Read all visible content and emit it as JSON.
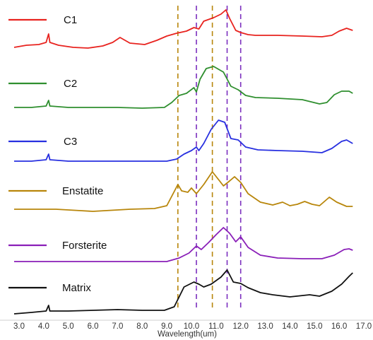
{
  "chart_data": {
    "type": "line",
    "title": "",
    "xlabel": "Wavelength(um)",
    "ylabel": "",
    "xlim": [
      2.6,
      17.0
    ],
    "grid": false,
    "legend": "inline labels at the left of each stacked spectrum",
    "x_ticks": [
      "3.0",
      "4.0",
      "5.0",
      "6.0",
      "7.0",
      "8.0",
      "9.0",
      "10.0",
      "11.0",
      "12.0",
      "13.0",
      "14.0",
      "15.0",
      "16.0",
      "17.0"
    ],
    "reference_lines": [
      {
        "x": 9.45,
        "color": "#b8860b",
        "style": "dashed"
      },
      {
        "x": 10.2,
        "color": "#7b2fbe",
        "style": "dashed"
      },
      {
        "x": 10.85,
        "color": "#b8860b",
        "style": "dashed"
      },
      {
        "x": 11.45,
        "color": "#7b2fbe",
        "style": "dashed"
      },
      {
        "x": 12.0,
        "color": "#7b2fbe",
        "style": "dashed"
      }
    ],
    "series": [
      {
        "name": "C1",
        "color": "#e8231f",
        "baseline": 70,
        "points": [
          [
            2.8,
            0.03
          ],
          [
            3.3,
            0.06
          ],
          [
            3.8,
            0.07
          ],
          [
            4.1,
            0.1
          ],
          [
            4.2,
            0.22
          ],
          [
            4.25,
            0.1
          ],
          [
            4.6,
            0.06
          ],
          [
            5.2,
            0.03
          ],
          [
            5.8,
            0.02
          ],
          [
            6.4,
            0.05
          ],
          [
            6.8,
            0.1
          ],
          [
            7.1,
            0.17
          ],
          [
            7.5,
            0.09
          ],
          [
            8.1,
            0.07
          ],
          [
            8.6,
            0.13
          ],
          [
            9.0,
            0.19
          ],
          [
            9.4,
            0.23
          ],
          [
            9.8,
            0.26
          ],
          [
            10.1,
            0.31
          ],
          [
            10.3,
            0.29
          ],
          [
            10.5,
            0.4
          ],
          [
            10.9,
            0.45
          ],
          [
            11.2,
            0.5
          ],
          [
            11.4,
            0.56
          ],
          [
            11.55,
            0.44
          ],
          [
            11.8,
            0.27
          ],
          [
            12.0,
            0.24
          ],
          [
            12.3,
            0.21
          ],
          [
            12.6,
            0.2
          ],
          [
            13.5,
            0.2
          ],
          [
            14.5,
            0.19
          ],
          [
            15.3,
            0.18
          ],
          [
            15.7,
            0.2
          ],
          [
            16.0,
            0.26
          ],
          [
            16.3,
            0.3
          ],
          [
            16.55,
            0.27
          ]
        ]
      },
      {
        "name": "C2",
        "color": "#2f8f2f",
        "baseline": 152,
        "points": [
          [
            2.8,
            0.0
          ],
          [
            3.5,
            0.0
          ],
          [
            4.1,
            0.02
          ],
          [
            4.2,
            0.1
          ],
          [
            4.25,
            0.02
          ],
          [
            5.0,
            0.0
          ],
          [
            6.0,
            0.0
          ],
          [
            7.0,
            0.0
          ],
          [
            8.0,
            -0.01
          ],
          [
            8.9,
            0.0
          ],
          [
            9.2,
            0.07
          ],
          [
            9.5,
            0.17
          ],
          [
            9.8,
            0.2
          ],
          [
            10.1,
            0.28
          ],
          [
            10.2,
            0.22
          ],
          [
            10.35,
            0.4
          ],
          [
            10.6,
            0.55
          ],
          [
            10.9,
            0.58
          ],
          [
            11.3,
            0.5
          ],
          [
            11.6,
            0.3
          ],
          [
            11.9,
            0.25
          ],
          [
            12.2,
            0.17
          ],
          [
            12.6,
            0.14
          ],
          [
            13.5,
            0.13
          ],
          [
            14.5,
            0.11
          ],
          [
            15.2,
            0.05
          ],
          [
            15.5,
            0.07
          ],
          [
            15.8,
            0.18
          ],
          [
            16.1,
            0.23
          ],
          [
            16.4,
            0.23
          ],
          [
            16.55,
            0.2
          ]
        ]
      },
      {
        "name": "C3",
        "color": "#2830e0",
        "baseline": 228,
        "points": [
          [
            2.8,
            0.0
          ],
          [
            3.5,
            0.0
          ],
          [
            4.1,
            0.02
          ],
          [
            4.2,
            0.1
          ],
          [
            4.25,
            0.02
          ],
          [
            5.0,
            0.0
          ],
          [
            6.0,
            0.0
          ],
          [
            7.0,
            0.0
          ],
          [
            8.0,
            0.0
          ],
          [
            9.0,
            0.0
          ],
          [
            9.4,
            0.03
          ],
          [
            9.7,
            0.1
          ],
          [
            10.0,
            0.15
          ],
          [
            10.2,
            0.2
          ],
          [
            10.3,
            0.15
          ],
          [
            10.5,
            0.25
          ],
          [
            10.8,
            0.45
          ],
          [
            11.1,
            0.58
          ],
          [
            11.35,
            0.55
          ],
          [
            11.6,
            0.32
          ],
          [
            11.9,
            0.3
          ],
          [
            12.2,
            0.2
          ],
          [
            12.7,
            0.16
          ],
          [
            13.5,
            0.15
          ],
          [
            14.5,
            0.14
          ],
          [
            15.3,
            0.12
          ],
          [
            15.7,
            0.18
          ],
          [
            16.1,
            0.28
          ],
          [
            16.3,
            0.3
          ],
          [
            16.55,
            0.25
          ]
        ]
      },
      {
        "name": "Enstatite",
        "color": "#b8860b",
        "baseline": 296,
        "points": [
          [
            2.8,
            0.0
          ],
          [
            3.5,
            0.0
          ],
          [
            4.5,
            0.0
          ],
          [
            5.5,
            -0.02
          ],
          [
            6.0,
            -0.03
          ],
          [
            6.5,
            -0.02
          ],
          [
            7.5,
            0.0
          ],
          [
            8.5,
            0.01
          ],
          [
            9.0,
            0.05
          ],
          [
            9.3,
            0.25
          ],
          [
            9.45,
            0.35
          ],
          [
            9.6,
            0.26
          ],
          [
            9.85,
            0.24
          ],
          [
            10.0,
            0.3
          ],
          [
            10.2,
            0.22
          ],
          [
            10.5,
            0.35
          ],
          [
            10.85,
            0.53
          ],
          [
            11.1,
            0.42
          ],
          [
            11.3,
            0.33
          ],
          [
            11.55,
            0.4
          ],
          [
            11.75,
            0.46
          ],
          [
            12.0,
            0.38
          ],
          [
            12.3,
            0.22
          ],
          [
            12.8,
            0.1
          ],
          [
            13.3,
            0.06
          ],
          [
            13.7,
            0.1
          ],
          [
            14.0,
            0.05
          ],
          [
            14.3,
            0.07
          ],
          [
            14.6,
            0.11
          ],
          [
            14.9,
            0.07
          ],
          [
            15.2,
            0.05
          ],
          [
            15.6,
            0.17
          ],
          [
            15.9,
            0.1
          ],
          [
            16.3,
            0.04
          ],
          [
            16.55,
            0.04
          ]
        ]
      },
      {
        "name": "Forsterite",
        "color": "#8a1fb8",
        "baseline": 370,
        "points": [
          [
            2.8,
            0.0
          ],
          [
            4.0,
            0.0
          ],
          [
            5.0,
            0.0
          ],
          [
            6.0,
            0.0
          ],
          [
            7.0,
            0.0
          ],
          [
            8.0,
            0.0
          ],
          [
            9.0,
            0.0
          ],
          [
            9.5,
            0.05
          ],
          [
            9.9,
            0.12
          ],
          [
            10.2,
            0.22
          ],
          [
            10.4,
            0.17
          ],
          [
            10.7,
            0.27
          ],
          [
            11.0,
            0.38
          ],
          [
            11.3,
            0.48
          ],
          [
            11.55,
            0.4
          ],
          [
            11.8,
            0.28
          ],
          [
            12.0,
            0.35
          ],
          [
            12.3,
            0.2
          ],
          [
            12.8,
            0.09
          ],
          [
            13.5,
            0.05
          ],
          [
            14.5,
            0.04
          ],
          [
            15.3,
            0.04
          ],
          [
            15.8,
            0.09
          ],
          [
            16.2,
            0.17
          ],
          [
            16.4,
            0.18
          ],
          [
            16.55,
            0.16
          ]
        ]
      },
      {
        "name": "Matrix",
        "color": "#111111",
        "baseline": 444,
        "points": [
          [
            2.8,
            0.0
          ],
          [
            3.5,
            0.02
          ],
          [
            4.1,
            0.04
          ],
          [
            4.2,
            0.12
          ],
          [
            4.25,
            0.04
          ],
          [
            5.0,
            0.04
          ],
          [
            6.0,
            0.05
          ],
          [
            7.0,
            0.06
          ],
          [
            8.0,
            0.05
          ],
          [
            8.9,
            0.05
          ],
          [
            9.3,
            0.1
          ],
          [
            9.7,
            0.38
          ],
          [
            10.1,
            0.45
          ],
          [
            10.3,
            0.42
          ],
          [
            10.5,
            0.38
          ],
          [
            10.8,
            0.42
          ],
          [
            11.2,
            0.52
          ],
          [
            11.45,
            0.62
          ],
          [
            11.7,
            0.45
          ],
          [
            12.0,
            0.43
          ],
          [
            12.3,
            0.37
          ],
          [
            12.8,
            0.3
          ],
          [
            13.3,
            0.27
          ],
          [
            14.0,
            0.24
          ],
          [
            14.8,
            0.27
          ],
          [
            15.2,
            0.25
          ],
          [
            15.7,
            0.32
          ],
          [
            16.1,
            0.42
          ],
          [
            16.4,
            0.53
          ],
          [
            16.55,
            0.58
          ]
        ]
      }
    ]
  }
}
